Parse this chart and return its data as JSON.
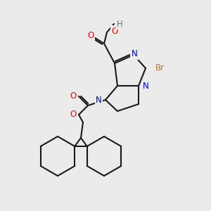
{
  "background_color": "#ebebeb",
  "bond_color": "#1a1a1a",
  "atom_colors": {
    "O": "#ff0000",
    "N": "#0000cc",
    "Br": "#b87820",
    "H": "#448888",
    "C": "#1a1a1a"
  },
  "figsize": [
    3.0,
    3.0
  ],
  "dpi": 100
}
